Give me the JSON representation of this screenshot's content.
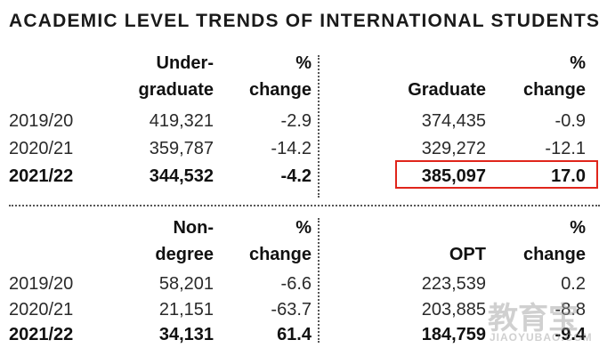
{
  "title": "ACADEMIC LEVEL TRENDS OF INTERNATIONAL STUDENTS",
  "chart_data": {
    "type": "table",
    "title": "ACADEMIC LEVEL TRENDS OF INTERNATIONAL STUDENTS",
    "years": [
      "2019/20",
      "2020/21",
      "2021/22"
    ],
    "groups": [
      {
        "name_lines": [
          "Under-",
          "graduate"
        ],
        "change_lines": [
          "%",
          "change"
        ],
        "values": [
          "419,321",
          "359,787",
          "344,532"
        ],
        "changes": [
          "-2.9",
          "-14.2",
          "-4.2"
        ]
      },
      {
        "name_lines": [
          "",
          "Graduate"
        ],
        "change_lines": [
          "%",
          "change"
        ],
        "values": [
          "374,435",
          "329,272",
          "385,097"
        ],
        "changes": [
          "-0.9",
          "-12.1",
          "17.0"
        ],
        "highlighted_row": "2021/22"
      },
      {
        "name_lines": [
          "Non-",
          "degree"
        ],
        "change_lines": [
          "%",
          "change"
        ],
        "values": [
          "58,201",
          "21,151",
          "34,131"
        ],
        "changes": [
          "-6.6",
          "-63.7",
          "61.4"
        ]
      },
      {
        "name_lines": [
          "",
          "OPT"
        ],
        "change_lines": [
          "%",
          "change"
        ],
        "values": [
          "223,539",
          "203,885",
          "184,759"
        ],
        "changes": [
          "0.2",
          "-8.8",
          "-9.4"
        ]
      }
    ],
    "highlight_color": "#e0251b"
  },
  "watermark": {
    "main": "教育宝",
    "sub": "JIAOYUBAO.COM"
  }
}
